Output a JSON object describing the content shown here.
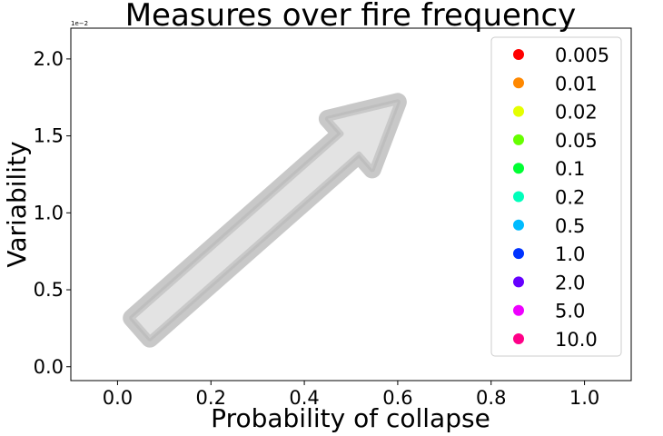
{
  "chart_data": {
    "type": "scatter",
    "title": "Measures over fire frequency",
    "xlabel": "Probability of collapse",
    "ylabel": "Variability",
    "xlim": [
      -0.1,
      1.1
    ],
    "ylim": [
      -0.09,
      2.2
    ],
    "y_offset_label": "1e−2",
    "xticks": [
      0.0,
      0.2,
      0.4,
      0.6,
      0.8,
      1.0
    ],
    "xtick_labels": [
      "0.0",
      "0.2",
      "0.4",
      "0.6",
      "0.8",
      "1.0"
    ],
    "yticks": [
      0.0,
      0.5,
      1.0,
      1.5,
      2.0
    ],
    "ytick_labels": [
      "0.0",
      "0.5",
      "1.0",
      "1.5",
      "2.0"
    ],
    "grid": false,
    "legend_position": "upper-right",
    "series": [
      {
        "name": "0.005",
        "color": "#ff0000",
        "points": []
      },
      {
        "name": "0.01",
        "color": "#ff8800",
        "points": []
      },
      {
        "name": "0.02",
        "color": "#e5ff00",
        "points": []
      },
      {
        "name": "0.05",
        "color": "#66ff00",
        "points": []
      },
      {
        "name": "0.1",
        "color": "#00ff33",
        "points": []
      },
      {
        "name": "0.2",
        "color": "#00ffbb",
        "points": []
      },
      {
        "name": "0.5",
        "color": "#00bbff",
        "points": []
      },
      {
        "name": "1.0",
        "color": "#0033ff",
        "points": []
      },
      {
        "name": "2.0",
        "color": "#6600ff",
        "points": []
      },
      {
        "name": "5.0",
        "color": "#ee00ff",
        "points": []
      },
      {
        "name": "10.0",
        "color": "#ff0088",
        "points": []
      }
    ],
    "annotations": [
      {
        "type": "arrow",
        "from": [
          0.05,
          0.25
        ],
        "to": [
          0.6,
          1.72
        ],
        "fill": "#e3e3e3",
        "edge": "#c8c8c8"
      }
    ]
  }
}
